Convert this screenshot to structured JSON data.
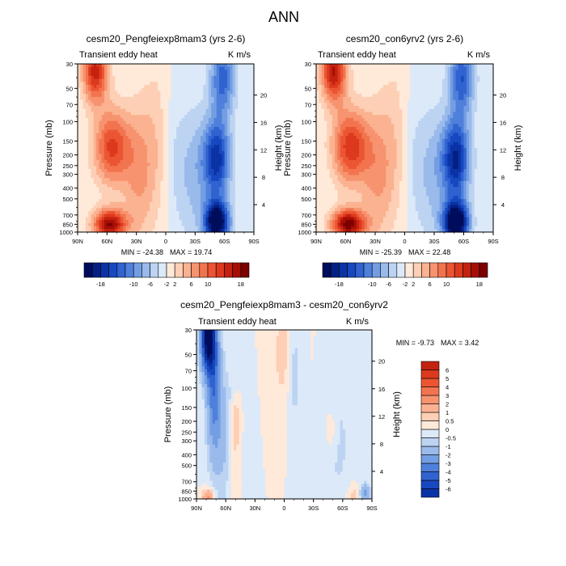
{
  "page_title": "ANN",
  "colors": {
    "positive_ramp": [
      "#FFE9D9",
      "#FDCFB5",
      "#FBB291",
      "#F7936F",
      "#F2744F",
      "#EC5533",
      "#DC391E",
      "#C42210",
      "#A60F06",
      "#7C0000"
    ],
    "negative_ramp": [
      "#DCE9F8",
      "#BCD3F2",
      "#99BAEB",
      "#739EE3",
      "#4F80DB",
      "#3062D0",
      "#1848C0",
      "#0B33A5",
      "#051F82",
      "#000D5C"
    ]
  },
  "chart_data": [
    {
      "type": "heatmap",
      "title": "cesm20_Pengfeiexp8mam3 (yrs 2-6)",
      "left_string": "Transient eddy heat",
      "right_string": "K m/s",
      "ylabel": "Pressure (mb)",
      "y2label": "Height (km)",
      "x_ticks": [
        "90N",
        "60N",
        "30N",
        "0",
        "30S",
        "60S",
        "90S"
      ],
      "y_ticks": [
        30,
        50,
        70,
        100,
        150,
        200,
        250,
        300,
        400,
        500,
        700,
        850,
        1000
      ],
      "y2_ticks": [
        4,
        8,
        12,
        16,
        20
      ],
      "ylim": [
        1000,
        30
      ],
      "yscale": "log",
      "stats": {
        "min_label": "MIN = ",
        "min": "-24.38",
        "max_label": "MAX = ",
        "max": "19.74"
      },
      "colorbar": {
        "orientation": "horizontal",
        "levels": [
          -20,
          -18,
          -16,
          -14,
          -12,
          -10,
          -8,
          -6,
          -4,
          -2,
          0,
          2,
          4,
          6,
          8,
          10,
          12,
          14,
          16,
          18
        ],
        "tick_labels": [
          "-18",
          "-10",
          "-6",
          "-2",
          "2",
          "6",
          "10",
          "18"
        ]
      }
    },
    {
      "type": "heatmap",
      "title": "cesm20_con6yrv2 (yrs 2-6)",
      "left_string": "Transient eddy heat",
      "right_string": "K m/s",
      "ylabel": "Pressure (mb)",
      "y2label": "Height (km)",
      "x_ticks": [
        "90N",
        "60N",
        "30N",
        "0",
        "30S",
        "60S",
        "90S"
      ],
      "y_ticks": [
        30,
        50,
        70,
        100,
        150,
        200,
        250,
        300,
        400,
        500,
        700,
        850,
        1000
      ],
      "y2_ticks": [
        4,
        8,
        12,
        16,
        20
      ],
      "ylim": [
        1000,
        30
      ],
      "yscale": "log",
      "stats": {
        "min_label": "MIN = ",
        "min": "-25.39",
        "max_label": "MAX = ",
        "max": "22.48"
      },
      "colorbar": {
        "orientation": "horizontal",
        "levels": [
          -20,
          -18,
          -16,
          -14,
          -12,
          -10,
          -8,
          -6,
          -4,
          -2,
          0,
          2,
          4,
          6,
          8,
          10,
          12,
          14,
          16,
          18
        ],
        "tick_labels": [
          "-18",
          "-10",
          "-6",
          "-2",
          "2",
          "6",
          "10",
          "18"
        ]
      }
    },
    {
      "type": "heatmap",
      "title": "cesm20_Pengfeiexp8mam3 - cesm20_con6yrv2",
      "left_string": "Transient eddy heat",
      "right_string": "K m/s",
      "ylabel": "Pressure (mb)",
      "y2label": "Height (km)",
      "x_ticks": [
        "90N",
        "60N",
        "30N",
        "0",
        "30S",
        "60S",
        "90S"
      ],
      "y_ticks": [
        30,
        50,
        70,
        100,
        150,
        200,
        250,
        300,
        400,
        500,
        700,
        850,
        1000
      ],
      "y2_ticks": [
        4,
        8,
        12,
        16,
        20
      ],
      "ylim": [
        1000,
        30
      ],
      "yscale": "log",
      "stats": {
        "min_label": "MIN = ",
        "min": "-9.73",
        "max_label": "MAX = ",
        "max": "3.42"
      },
      "colorbar": {
        "orientation": "vertical",
        "levels": [
          -7,
          -6,
          -5,
          -4,
          -3,
          -2,
          -1,
          -0.5,
          0,
          0.5,
          1,
          2,
          3,
          4,
          5,
          6,
          7
        ],
        "tick_labels": [
          "-6",
          "-5",
          "-4",
          "-3",
          "-2",
          "-1",
          "-0.5",
          "0",
          "0.5",
          "1",
          "2",
          "3",
          "4",
          "5",
          "6"
        ]
      }
    }
  ]
}
